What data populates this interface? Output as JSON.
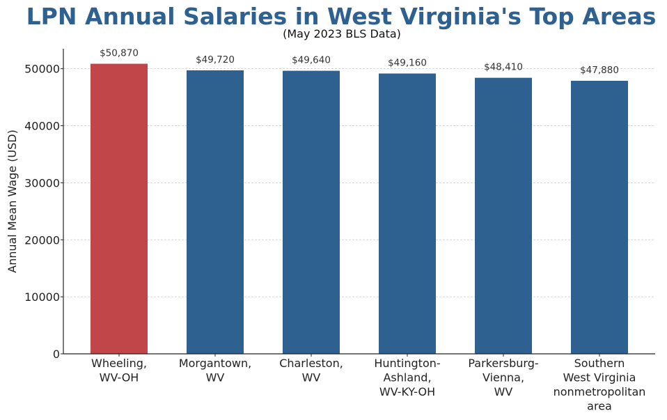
{
  "chart_data": {
    "type": "bar",
    "title": "LPN Annual Salaries in West Virginia's Top Areas",
    "subtitle": "(May 2023 BLS Data)",
    "ylabel": "Annual Mean Wage (USD)",
    "xlabel": "",
    "ylim": [
      0,
      53500
    ],
    "yticks": [
      0,
      10000,
      20000,
      30000,
      40000,
      50000
    ],
    "grid": "y-dashed",
    "categories": [
      "Wheeling,\nWV-OH",
      "Morgantown,\nWV",
      "Charleston,\nWV",
      "Huntington-\nAshland,\nWV-KY-OH",
      "Parkersburg-\nVienna,\nWV",
      "Southern\nWest Virginia\nnonmetropolitan\narea"
    ],
    "values": [
      50870,
      49720,
      49640,
      49160,
      48410,
      47880
    ],
    "data_labels": [
      "$50,870",
      "$49,720",
      "$49,640",
      "$49,160",
      "$48,410",
      "$47,880"
    ],
    "colors": [
      "#c0464a",
      "#2f6190",
      "#2f6190",
      "#2f6190",
      "#2f6190",
      "#2f6190"
    ]
  }
}
